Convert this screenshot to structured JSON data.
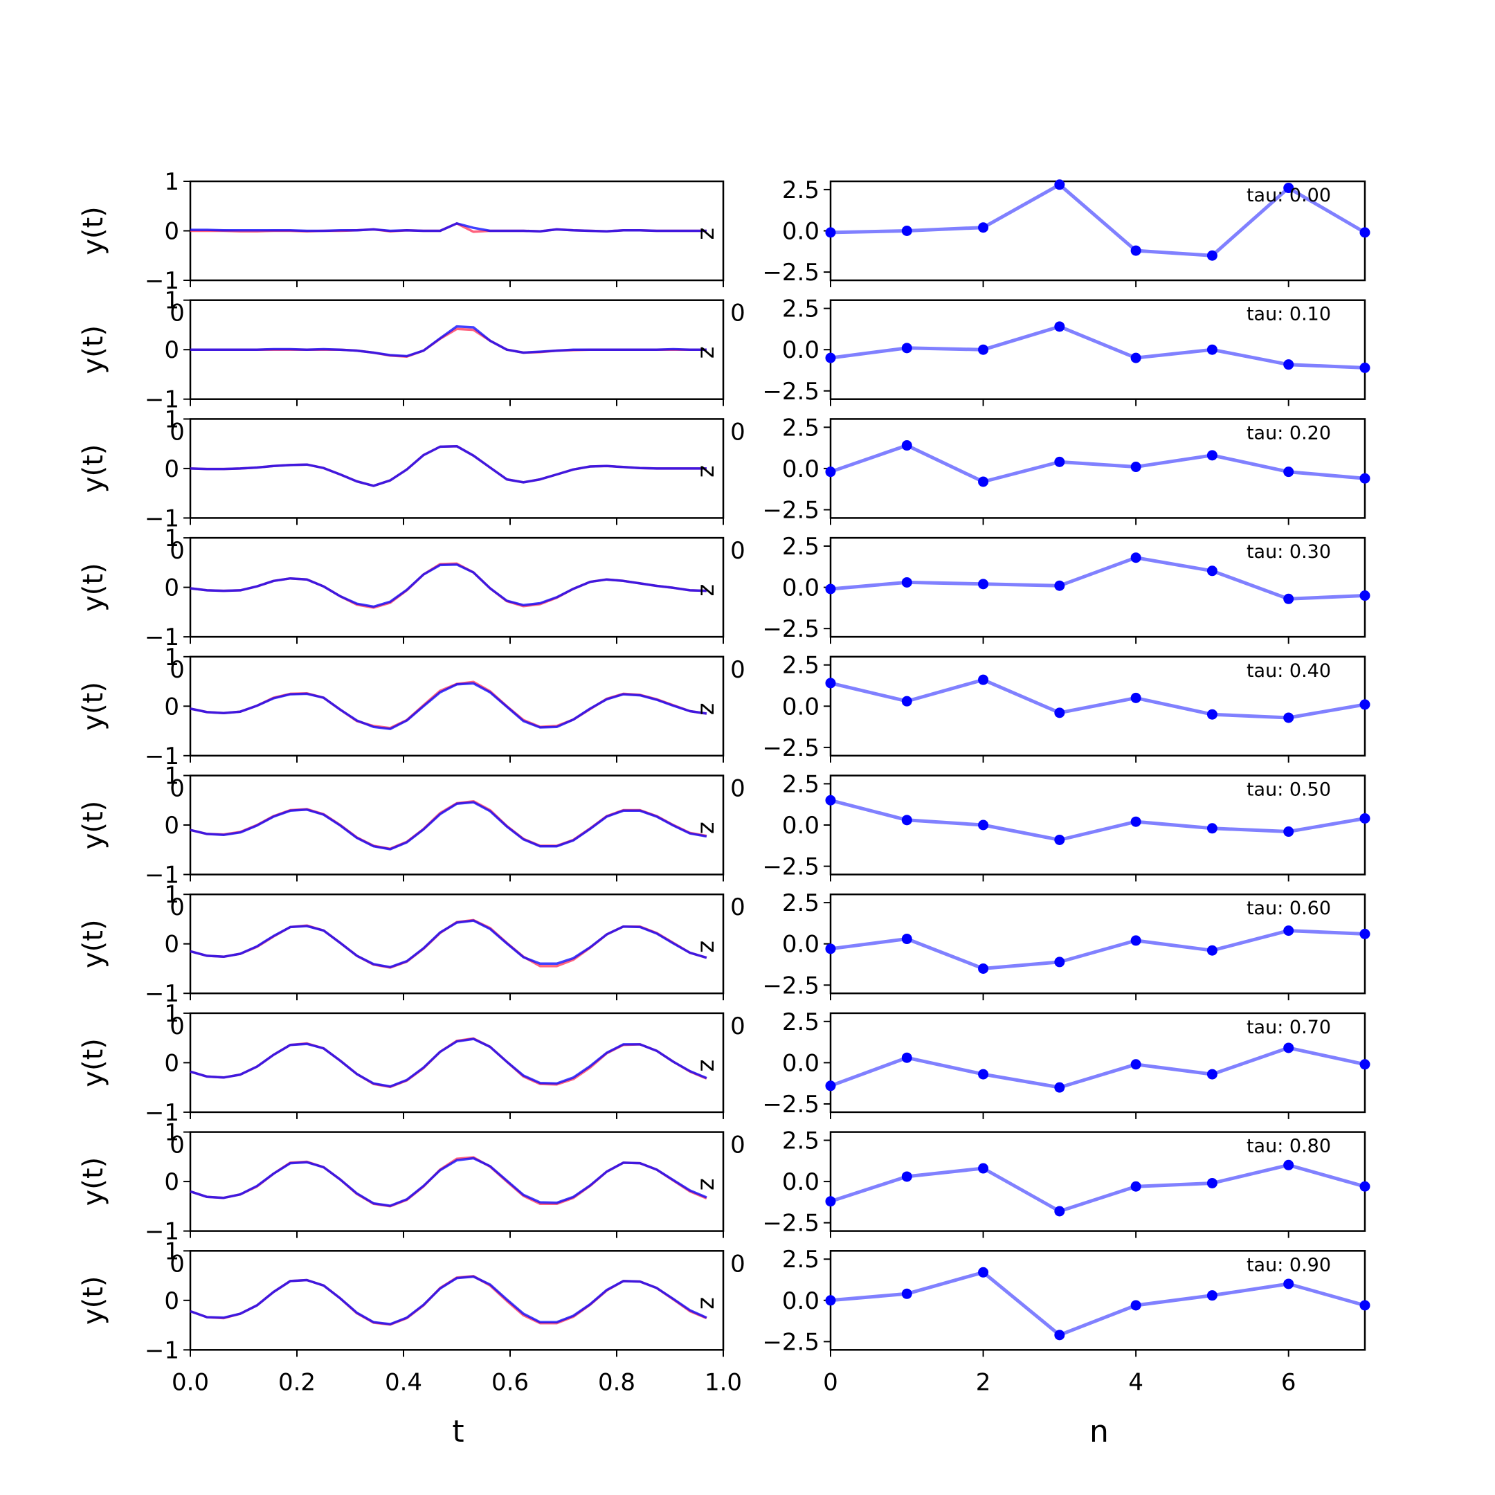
{
  "figure": {
    "left_xlabel": "t",
    "right_xlabel": "n"
  },
  "chart_data": [
    {
      "id": "left-panels",
      "type": "line",
      "xlabel": "t",
      "ylabel": "y(t)",
      "xlim": [
        0,
        1
      ],
      "ylim": [
        -1,
        1
      ],
      "xticks": [
        "0.0",
        "0.2",
        "0.4",
        "0.6",
        "0.8",
        "1.0"
      ],
      "xtick_values": [
        0,
        0.2,
        0.4,
        0.6,
        0.8,
        1.0
      ],
      "yticks": [
        "−1",
        "0",
        "1"
      ],
      "ytick_values": [
        -1,
        0,
        1
      ],
      "panel_label": "z",
      "overlap_labels": [
        "0",
        "0"
      ],
      "grid": false,
      "x": [
        0.0,
        0.03125,
        0.0625,
        0.09375,
        0.125,
        0.15625,
        0.1875,
        0.21875,
        0.25,
        0.28125,
        0.3125,
        0.34375,
        0.375,
        0.40625,
        0.4375,
        0.46875,
        0.5,
        0.53125,
        0.5625,
        0.59375,
        0.625,
        0.65625,
        0.6875,
        0.71875,
        0.75,
        0.78125,
        0.8125,
        0.84375,
        0.875,
        0.90625,
        0.9375,
        0.96875
      ],
      "series_colors": [
        "#ff3b5c",
        "#0000ff"
      ],
      "panels": [
        {
          "tau": 0.0,
          "reference": [
            0,
            0,
            0,
            -0.01,
            -0.01,
            0,
            0,
            -0.01,
            0,
            0,
            0.01,
            0.03,
            -0.01,
            0.01,
            0,
            0,
            0.15,
            -0.02,
            0,
            0,
            0,
            -0.01,
            0.03,
            0.01,
            0,
            -0.01,
            0.01,
            0.01,
            0,
            0,
            0,
            0
          ],
          "prediction": [
            0.02,
            0.02,
            0.01,
            0.01,
            0.01,
            0.01,
            0.01,
            0.0,
            0.0,
            0.01,
            0.01,
            0.03,
            0.0,
            0.01,
            0.0,
            0.0,
            0.15,
            0.06,
            0.0,
            0.0,
            0.0,
            -0.01,
            0.03,
            0.01,
            0.0,
            -0.01,
            0.01,
            0.01,
            0.0,
            0.0,
            0.0,
            0.0
          ]
        },
        {
          "tau": 0.1,
          "reference": [
            0,
            0,
            0,
            0,
            0,
            0,
            0,
            0,
            0,
            0,
            -0.02,
            -0.06,
            -0.12,
            -0.14,
            -0.02,
            0.22,
            0.42,
            0.4,
            0.18,
            0.0,
            -0.06,
            -0.05,
            -0.02,
            -0.01,
            0,
            0,
            0,
            0,
            0,
            0,
            0,
            0
          ],
          "prediction": [
            0,
            0,
            0,
            0,
            0,
            0.01,
            0.01,
            0,
            0.01,
            0,
            -0.02,
            -0.06,
            -0.11,
            -0.13,
            -0.02,
            0.23,
            0.47,
            0.45,
            0.18,
            0.0,
            -0.06,
            -0.04,
            -0.02,
            0,
            0,
            0,
            0,
            0,
            0,
            0.01,
            0,
            0
          ]
        },
        {
          "tau": 0.2,
          "reference": [
            0,
            -0.01,
            -0.01,
            0,
            0.02,
            0.05,
            0.07,
            0.08,
            0.01,
            -0.12,
            -0.26,
            -0.35,
            -0.24,
            -0.02,
            0.27,
            0.44,
            0.45,
            0.26,
            0.02,
            -0.22,
            -0.28,
            -0.22,
            -0.12,
            -0.02,
            0.04,
            0.05,
            0.03,
            0.01,
            0,
            0,
            0,
            0
          ],
          "prediction": [
            0,
            -0.01,
            -0.01,
            0,
            0.02,
            0.05,
            0.07,
            0.08,
            0.01,
            -0.12,
            -0.26,
            -0.35,
            -0.24,
            -0.02,
            0.27,
            0.44,
            0.45,
            0.26,
            0.02,
            -0.22,
            -0.28,
            -0.22,
            -0.12,
            -0.02,
            0.04,
            0.05,
            0.03,
            0.01,
            0,
            0,
            0,
            0
          ]
        },
        {
          "tau": 0.3,
          "reference": [
            -0.02,
            -0.06,
            -0.07,
            -0.06,
            0.02,
            0.13,
            0.18,
            0.16,
            0.02,
            -0.18,
            -0.35,
            -0.41,
            -0.31,
            -0.06,
            0.26,
            0.47,
            0.48,
            0.3,
            -0.02,
            -0.28,
            -0.38,
            -0.34,
            -0.21,
            -0.03,
            0.11,
            0.16,
            0.13,
            0.08,
            0.03,
            -0.01,
            -0.06,
            -0.07
          ],
          "prediction": [
            -0.02,
            -0.06,
            -0.07,
            -0.06,
            0.02,
            0.13,
            0.18,
            0.16,
            0.02,
            -0.18,
            -0.33,
            -0.39,
            -0.29,
            -0.05,
            0.26,
            0.45,
            0.46,
            0.3,
            -0.02,
            -0.27,
            -0.36,
            -0.32,
            -0.2,
            -0.03,
            0.11,
            0.16,
            0.13,
            0.08,
            0.03,
            -0.01,
            -0.06,
            -0.07
          ]
        },
        {
          "tau": 0.4,
          "reference": [
            -0.05,
            -0.12,
            -0.14,
            -0.11,
            0.01,
            0.17,
            0.25,
            0.26,
            0.17,
            -0.07,
            -0.3,
            -0.4,
            -0.44,
            -0.28,
            0.02,
            0.31,
            0.45,
            0.49,
            0.3,
            0.0,
            -0.28,
            -0.42,
            -0.4,
            -0.27,
            -0.06,
            0.15,
            0.25,
            0.23,
            0.14,
            0.02,
            -0.1,
            -0.15
          ],
          "prediction": [
            -0.05,
            -0.12,
            -0.14,
            -0.11,
            0.01,
            0.16,
            0.24,
            0.25,
            0.17,
            -0.07,
            -0.29,
            -0.42,
            -0.46,
            -0.29,
            0.0,
            0.28,
            0.44,
            0.46,
            0.28,
            -0.01,
            -0.3,
            -0.43,
            -0.42,
            -0.27,
            -0.05,
            0.14,
            0.24,
            0.22,
            0.13,
            0.01,
            -0.1,
            -0.15
          ]
        },
        {
          "tau": 0.5,
          "reference": [
            -0.1,
            -0.18,
            -0.19,
            -0.14,
            0.0,
            0.18,
            0.3,
            0.32,
            0.22,
            0.0,
            -0.25,
            -0.42,
            -0.48,
            -0.34,
            -0.08,
            0.24,
            0.44,
            0.48,
            0.3,
            -0.02,
            -0.28,
            -0.42,
            -0.42,
            -0.3,
            -0.07,
            0.18,
            0.3,
            0.3,
            0.18,
            0.0,
            -0.16,
            -0.22
          ],
          "prediction": [
            -0.1,
            -0.18,
            -0.2,
            -0.15,
            -0.01,
            0.17,
            0.29,
            0.31,
            0.21,
            -0.01,
            -0.26,
            -0.43,
            -0.49,
            -0.35,
            -0.09,
            0.22,
            0.43,
            0.46,
            0.28,
            -0.03,
            -0.29,
            -0.43,
            -0.43,
            -0.31,
            -0.08,
            0.17,
            0.29,
            0.29,
            0.17,
            -0.01,
            -0.17,
            -0.23
          ]
        },
        {
          "tau": 0.6,
          "reference": [
            -0.15,
            -0.24,
            -0.26,
            -0.2,
            -0.06,
            0.15,
            0.34,
            0.37,
            0.27,
            0.02,
            -0.24,
            -0.42,
            -0.48,
            -0.36,
            -0.1,
            0.22,
            0.44,
            0.48,
            0.32,
            0.02,
            -0.26,
            -0.45,
            -0.45,
            -0.32,
            -0.08,
            0.19,
            0.35,
            0.35,
            0.22,
            0.02,
            -0.18,
            -0.28
          ],
          "prediction": [
            -0.15,
            -0.24,
            -0.26,
            -0.2,
            -0.05,
            0.16,
            0.34,
            0.36,
            0.27,
            0.02,
            -0.24,
            -0.41,
            -0.47,
            -0.35,
            -0.09,
            0.23,
            0.43,
            0.47,
            0.3,
            0.01,
            -0.27,
            -0.4,
            -0.4,
            -0.29,
            -0.07,
            0.19,
            0.35,
            0.34,
            0.21,
            0.01,
            -0.18,
            -0.28
          ]
        },
        {
          "tau": 0.7,
          "reference": [
            -0.18,
            -0.28,
            -0.3,
            -0.24,
            -0.08,
            0.16,
            0.36,
            0.39,
            0.29,
            0.04,
            -0.23,
            -0.43,
            -0.49,
            -0.36,
            -0.11,
            0.22,
            0.44,
            0.49,
            0.32,
            0.02,
            -0.28,
            -0.43,
            -0.44,
            -0.33,
            -0.1,
            0.19,
            0.36,
            0.37,
            0.24,
            0.02,
            -0.18,
            -0.32
          ],
          "prediction": [
            -0.18,
            -0.28,
            -0.3,
            -0.24,
            -0.08,
            0.16,
            0.36,
            0.38,
            0.29,
            0.04,
            -0.23,
            -0.42,
            -0.48,
            -0.35,
            -0.1,
            0.22,
            0.43,
            0.48,
            0.32,
            0.02,
            -0.26,
            -0.41,
            -0.42,
            -0.3,
            -0.07,
            0.2,
            0.37,
            0.37,
            0.24,
            0.02,
            -0.17,
            -0.31
          ]
        },
        {
          "tau": 0.8,
          "reference": [
            -0.2,
            -0.31,
            -0.33,
            -0.26,
            -0.1,
            0.16,
            0.38,
            0.4,
            0.29,
            0.04,
            -0.25,
            -0.45,
            -0.5,
            -0.37,
            -0.1,
            0.24,
            0.46,
            0.49,
            0.3,
            0.0,
            -0.29,
            -0.45,
            -0.45,
            -0.33,
            -0.09,
            0.2,
            0.38,
            0.37,
            0.24,
            0.02,
            -0.2,
            -0.34
          ],
          "prediction": [
            -0.2,
            -0.31,
            -0.33,
            -0.26,
            -0.09,
            0.16,
            0.37,
            0.39,
            0.29,
            0.04,
            -0.24,
            -0.44,
            -0.49,
            -0.36,
            -0.09,
            0.23,
            0.43,
            0.47,
            0.31,
            0.02,
            -0.27,
            -0.42,
            -0.43,
            -0.31,
            -0.08,
            0.2,
            0.38,
            0.37,
            0.24,
            0.03,
            -0.18,
            -0.32
          ]
        },
        {
          "tau": 0.9,
          "reference": [
            -0.22,
            -0.34,
            -0.36,
            -0.27,
            -0.1,
            0.17,
            0.39,
            0.41,
            0.3,
            0.04,
            -0.26,
            -0.45,
            -0.49,
            -0.36,
            -0.1,
            0.25,
            0.46,
            0.49,
            0.3,
            -0.01,
            -0.3,
            -0.46,
            -0.46,
            -0.33,
            -0.09,
            0.2,
            0.39,
            0.38,
            0.25,
            0.02,
            -0.22,
            -0.36
          ],
          "prediction": [
            -0.22,
            -0.34,
            -0.35,
            -0.27,
            -0.1,
            0.17,
            0.39,
            0.41,
            0.3,
            0.04,
            -0.25,
            -0.44,
            -0.48,
            -0.35,
            -0.09,
            0.24,
            0.45,
            0.48,
            0.32,
            0.02,
            -0.27,
            -0.44,
            -0.44,
            -0.31,
            -0.08,
            0.21,
            0.39,
            0.38,
            0.25,
            0.03,
            -0.2,
            -0.35
          ]
        }
      ]
    },
    {
      "id": "right-panels",
      "type": "line",
      "xlabel": "n",
      "ylabel": "",
      "xlim": [
        0,
        7
      ],
      "ylim": [
        -3,
        3
      ],
      "xticks": [
        "0",
        "2",
        "4",
        "6"
      ],
      "xtick_values": [
        0,
        2,
        4,
        6
      ],
      "yticks": [
        "2.5",
        "0.0",
        "−2.5"
      ],
      "ytick_values": [
        2.5,
        0,
        -2.5
      ],
      "tau_prefix": "tau: ",
      "line_color": "#8080ff",
      "marker_color": "#0000ff",
      "grid": false,
      "x": [
        0,
        1,
        2,
        3,
        4,
        5,
        6,
        7
      ],
      "panels": [
        {
          "tau_label": "0.00",
          "values": [
            -0.1,
            0.0,
            0.2,
            2.8,
            -1.2,
            -1.5,
            2.6,
            -0.1
          ]
        },
        {
          "tau_label": "0.10",
          "values": [
            -0.5,
            0.1,
            0.0,
            1.4,
            -0.5,
            0.0,
            -0.9,
            -1.1
          ]
        },
        {
          "tau_label": "0.20",
          "values": [
            -0.2,
            1.4,
            -0.8,
            0.4,
            0.1,
            0.8,
            -0.2,
            -0.6
          ]
        },
        {
          "tau_label": "0.30",
          "values": [
            -0.1,
            0.3,
            0.2,
            0.1,
            1.8,
            1.0,
            -0.7,
            -0.5
          ]
        },
        {
          "tau_label": "0.40",
          "values": [
            1.4,
            0.3,
            1.6,
            -0.4,
            0.5,
            -0.5,
            -0.7,
            0.1
          ]
        },
        {
          "tau_label": "0.50",
          "values": [
            1.5,
            0.3,
            0.0,
            -0.9,
            0.2,
            -0.2,
            -0.4,
            0.4
          ]
        },
        {
          "tau_label": "0.60",
          "values": [
            -0.3,
            0.3,
            -1.5,
            -1.1,
            0.2,
            -0.4,
            0.8,
            0.6
          ]
        },
        {
          "tau_label": "0.70",
          "values": [
            -1.4,
            0.3,
            -0.7,
            -1.5,
            -0.1,
            -0.7,
            0.9,
            -0.1
          ]
        },
        {
          "tau_label": "0.80",
          "values": [
            -1.2,
            0.3,
            0.8,
            -1.8,
            -0.3,
            -0.1,
            1.0,
            -0.3
          ]
        },
        {
          "tau_label": "0.90",
          "values": [
            0.0,
            0.4,
            1.7,
            -2.1,
            -0.3,
            0.3,
            1.0,
            -0.3
          ]
        }
      ]
    }
  ]
}
